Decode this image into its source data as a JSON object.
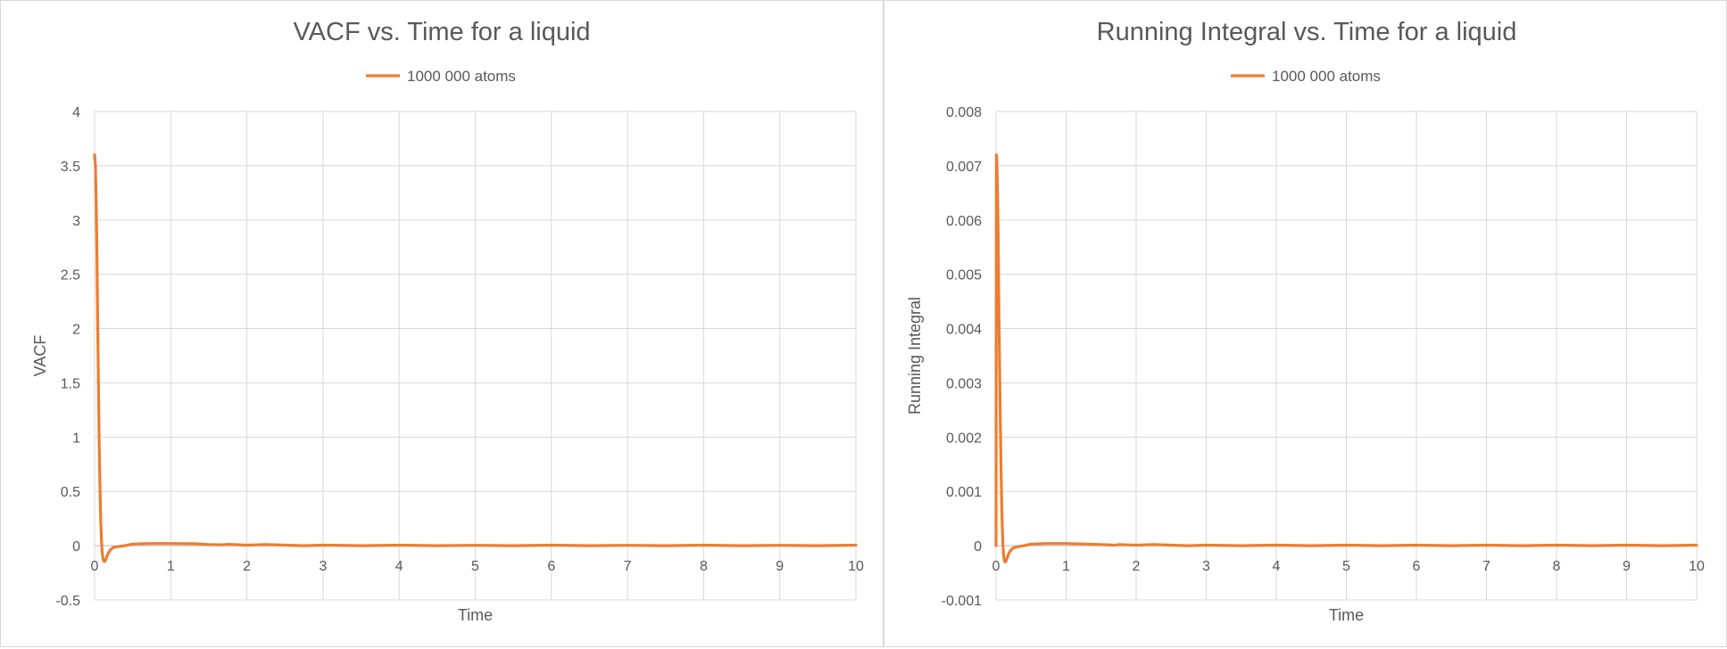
{
  "chart_data": [
    {
      "type": "line",
      "title": "VACF vs. Time for a liquid",
      "xlabel": "Time",
      "ylabel": "VACF",
      "xlim": [
        0,
        10
      ],
      "ylim": [
        -0.5,
        4
      ],
      "x_ticks": [
        "0",
        "1",
        "2",
        "3",
        "4",
        "5",
        "6",
        "7",
        "8",
        "9",
        "10"
      ],
      "y_ticks": [
        "-0.5",
        "0",
        "0.5",
        "1",
        "1.5",
        "2",
        "2.5",
        "3",
        "3.5",
        "4"
      ],
      "grid": true,
      "legend_position": "top",
      "series": [
        {
          "name": "1000 000 atoms",
          "color": "#ed7d31",
          "x": [
            0,
            0.01,
            0.02,
            0.03,
            0.04,
            0.05,
            0.06,
            0.07,
            0.08,
            0.09,
            0.1,
            0.11,
            0.12,
            0.13,
            0.14,
            0.15,
            0.16,
            0.18,
            0.2,
            0.22,
            0.25,
            0.3,
            0.35,
            0.4,
            0.5,
            0.7,
            1.0,
            1.3,
            1.5,
            1.7,
            1.75,
            2.0,
            2.25,
            2.5,
            2.75,
            3.0,
            3.5,
            4.0,
            4.5,
            5.0,
            5.5,
            6.0,
            6.5,
            7.0,
            7.5,
            8.0,
            8.5,
            9.0,
            9.5,
            10
          ],
          "y": [
            3.6,
            3.5,
            3.2,
            2.7,
            2.1,
            1.5,
            0.95,
            0.55,
            0.25,
            0.05,
            -0.06,
            -0.12,
            -0.14,
            -0.145,
            -0.14,
            -0.12,
            -0.1,
            -0.07,
            -0.045,
            -0.03,
            -0.015,
            -0.01,
            -0.005,
            0.0,
            0.015,
            0.02,
            0.02,
            0.018,
            0.01,
            0.008,
            0.012,
            0.005,
            0.01,
            0.005,
            0.0,
            0.005,
            0.0,
            0.005,
            0.0,
            0.003,
            0.0,
            0.005,
            0.0,
            0.003,
            0.0,
            0.005,
            0.0,
            0.003,
            0.0,
            0.005
          ]
        }
      ]
    },
    {
      "type": "line",
      "title": "Running Integral vs. Time for a liquid",
      "xlabel": "Time",
      "ylabel": "Running Integral",
      "xlim": [
        0,
        10
      ],
      "ylim": [
        -0.001,
        0.008
      ],
      "x_ticks": [
        "0",
        "1",
        "2",
        "3",
        "4",
        "5",
        "6",
        "7",
        "8",
        "9",
        "10"
      ],
      "y_ticks": [
        "-0.001",
        "0",
        "0.001",
        "0.002",
        "0.003",
        "0.004",
        "0.005",
        "0.006",
        "0.007",
        "0.008"
      ],
      "grid": true,
      "legend_position": "top",
      "series": [
        {
          "name": "1000 000 atoms",
          "color": "#ed7d31",
          "x": [
            0,
            0.005,
            0.01,
            0.02,
            0.03,
            0.04,
            0.05,
            0.06,
            0.07,
            0.08,
            0.09,
            0.1,
            0.11,
            0.12,
            0.13,
            0.14,
            0.15,
            0.16,
            0.18,
            0.2,
            0.22,
            0.25,
            0.3,
            0.35,
            0.4,
            0.5,
            0.7,
            1.0,
            1.3,
            1.5,
            1.7,
            1.75,
            2.0,
            2.25,
            2.5,
            2.75,
            3.0,
            3.5,
            4.0,
            4.5,
            5.0,
            5.5,
            6.0,
            6.5,
            7.0,
            7.5,
            8.0,
            8.5,
            9.0,
            9.5,
            10
          ],
          "y": [
            0.0,
            0.0072,
            0.0071,
            0.0066,
            0.0057,
            0.0045,
            0.0034,
            0.0024,
            0.0015,
            0.0008,
            0.0003,
            0.0,
            -0.0002,
            -0.00028,
            -0.0003,
            -0.00029,
            -0.00026,
            -0.00022,
            -0.00015,
            -0.0001,
            -7e-05,
            -4e-05,
            -2e-05,
            -1e-05,
            0.0,
            3e-05,
            4e-05,
            4e-05,
            3e-05,
            2e-05,
            1e-05,
            2e-05,
            1e-05,
            2e-05,
            1e-05,
            0.0,
            1e-05,
            0.0,
            1e-05,
            0.0,
            1e-05,
            0.0,
            1e-05,
            0.0,
            1e-05,
            0.0,
            1e-05,
            0.0,
            1e-05,
            0.0,
            1e-05
          ]
        }
      ]
    }
  ]
}
